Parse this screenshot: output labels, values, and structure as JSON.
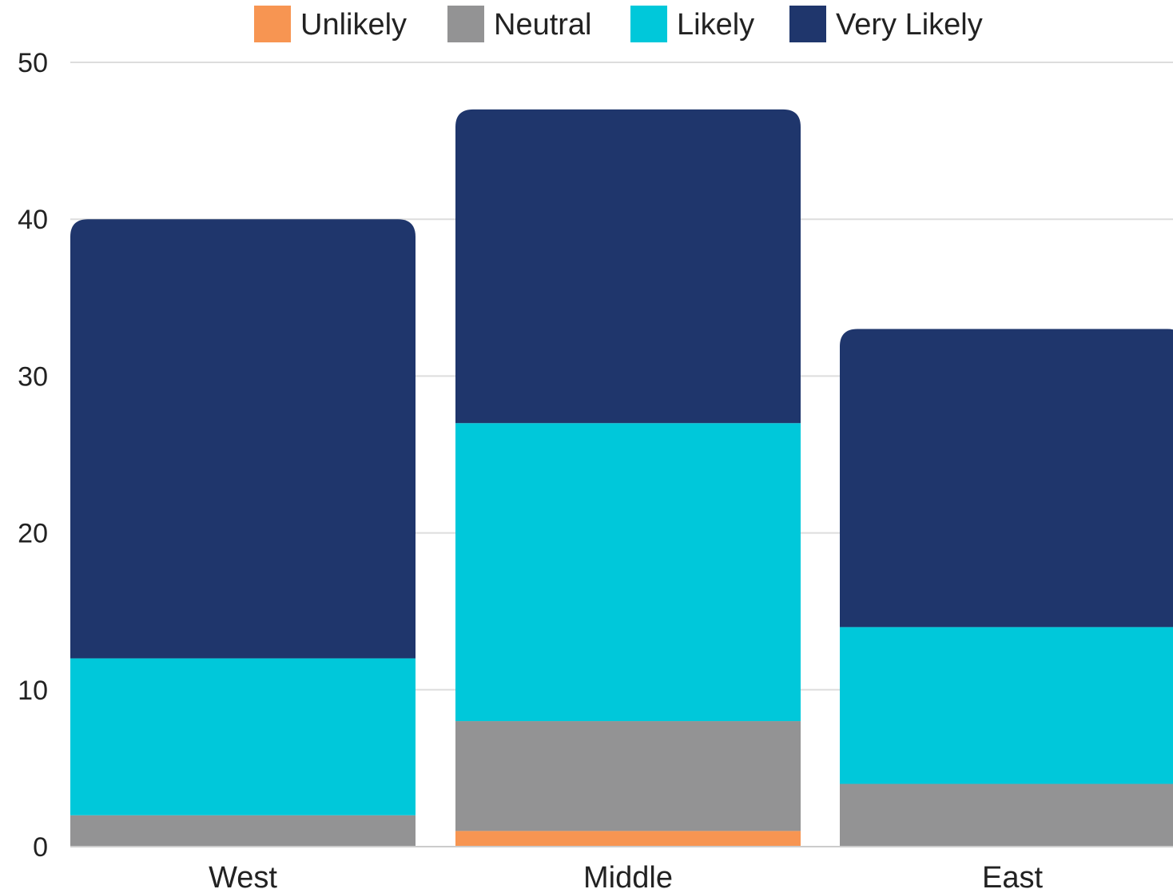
{
  "chart_data": {
    "type": "bar",
    "stacked": true,
    "title": "",
    "xlabel": "",
    "ylabel": "",
    "categories": [
      "West",
      "Middle",
      "East"
    ],
    "ylim": [
      0,
      50
    ],
    "yticks": [
      0,
      10,
      20,
      30,
      40,
      50
    ],
    "grid": true,
    "legend_position": "top",
    "series": [
      {
        "name": "Unlikely",
        "color": "#f79552",
        "values": [
          0,
          1,
          0
        ]
      },
      {
        "name": "Neutral",
        "color": "#939394",
        "values": [
          2,
          7,
          4
        ]
      },
      {
        "name": "Likely",
        "color": "#00c8da",
        "values": [
          10,
          19,
          10
        ]
      },
      {
        "name": "Very Likely",
        "color": "#1f366c",
        "values": [
          28,
          20,
          19
        ]
      }
    ]
  }
}
